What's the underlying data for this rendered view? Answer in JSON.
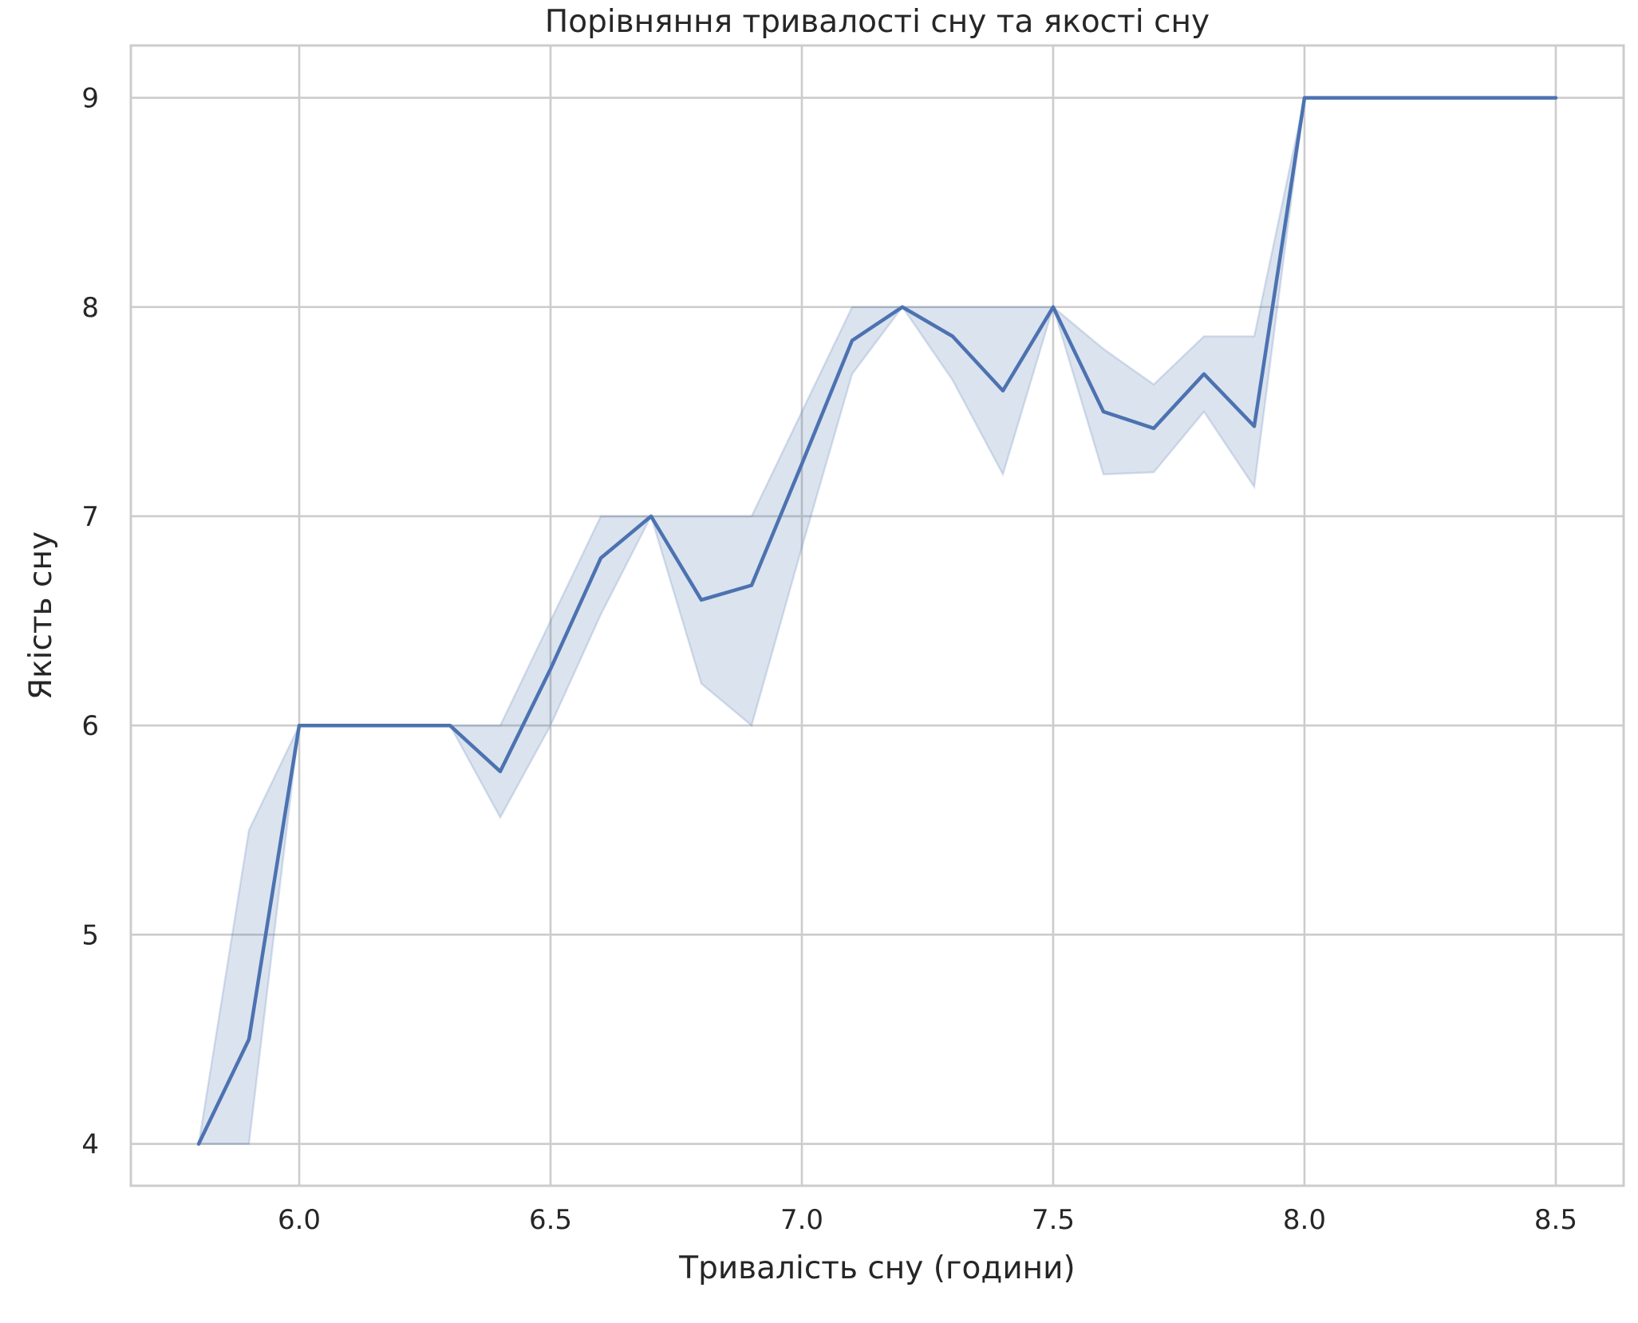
{
  "chart_data": {
    "type": "line",
    "title": "Порівняння тривалості сну та якості сну",
    "xlabel": "Тривалість сну (години)",
    "ylabel": "Якість сну",
    "xlim": [
      5.665,
      8.635
    ],
    "ylim": [
      3.8,
      9.25
    ],
    "grid": true,
    "legend": "none",
    "x_ticks": [
      6.0,
      6.5,
      7.0,
      7.5,
      8.0,
      8.5
    ],
    "x_tick_labels": [
      "6.0",
      "6.5",
      "7.0",
      "7.5",
      "8.0",
      "8.5"
    ],
    "y_ticks": [
      4,
      5,
      6,
      7,
      8,
      9
    ],
    "y_tick_labels": [
      "4",
      "5",
      "6",
      "7",
      "8",
      "9"
    ],
    "colors": {
      "line": "#4c72b0",
      "band": "#4c72b0"
    },
    "series": [
      {
        "x": [
          5.8,
          5.9,
          6.0,
          6.1,
          6.2,
          6.3,
          6.4,
          6.5,
          6.6,
          6.7,
          6.8,
          6.9,
          7.0,
          7.1,
          7.2,
          7.3,
          7.4,
          7.5,
          7.6,
          7.7,
          7.8,
          7.9,
          8.0,
          8.1,
          8.2,
          8.3,
          8.4,
          8.5
        ],
        "y": [
          4.0,
          4.5,
          6.0,
          6.0,
          6.0,
          6.0,
          5.78,
          6.27,
          6.8,
          7.0,
          6.6,
          6.67,
          7.25,
          7.84,
          8.0,
          7.86,
          7.6,
          8.0,
          7.5,
          7.42,
          7.68,
          7.43,
          9.0,
          9.0,
          9.0,
          9.0,
          9.0,
          9.0
        ],
        "lower": [
          4.0,
          4.0,
          6.0,
          6.0,
          6.0,
          6.0,
          5.56,
          6.0,
          6.53,
          7.0,
          6.2,
          6.0,
          6.85,
          7.68,
          8.0,
          7.65,
          7.2,
          8.0,
          7.2,
          7.21,
          7.5,
          7.14,
          9.0,
          9.0,
          9.0,
          9.0,
          9.0,
          9.0
        ],
        "upper": [
          4.0,
          5.5,
          6.0,
          6.0,
          6.0,
          6.0,
          6.0,
          6.5,
          7.0,
          7.0,
          7.0,
          7.0,
          7.5,
          8.0,
          8.0,
          8.0,
          8.0,
          8.0,
          7.8,
          7.63,
          7.86,
          7.86,
          9.0,
          9.0,
          9.0,
          9.0,
          9.0,
          9.0
        ]
      }
    ]
  }
}
